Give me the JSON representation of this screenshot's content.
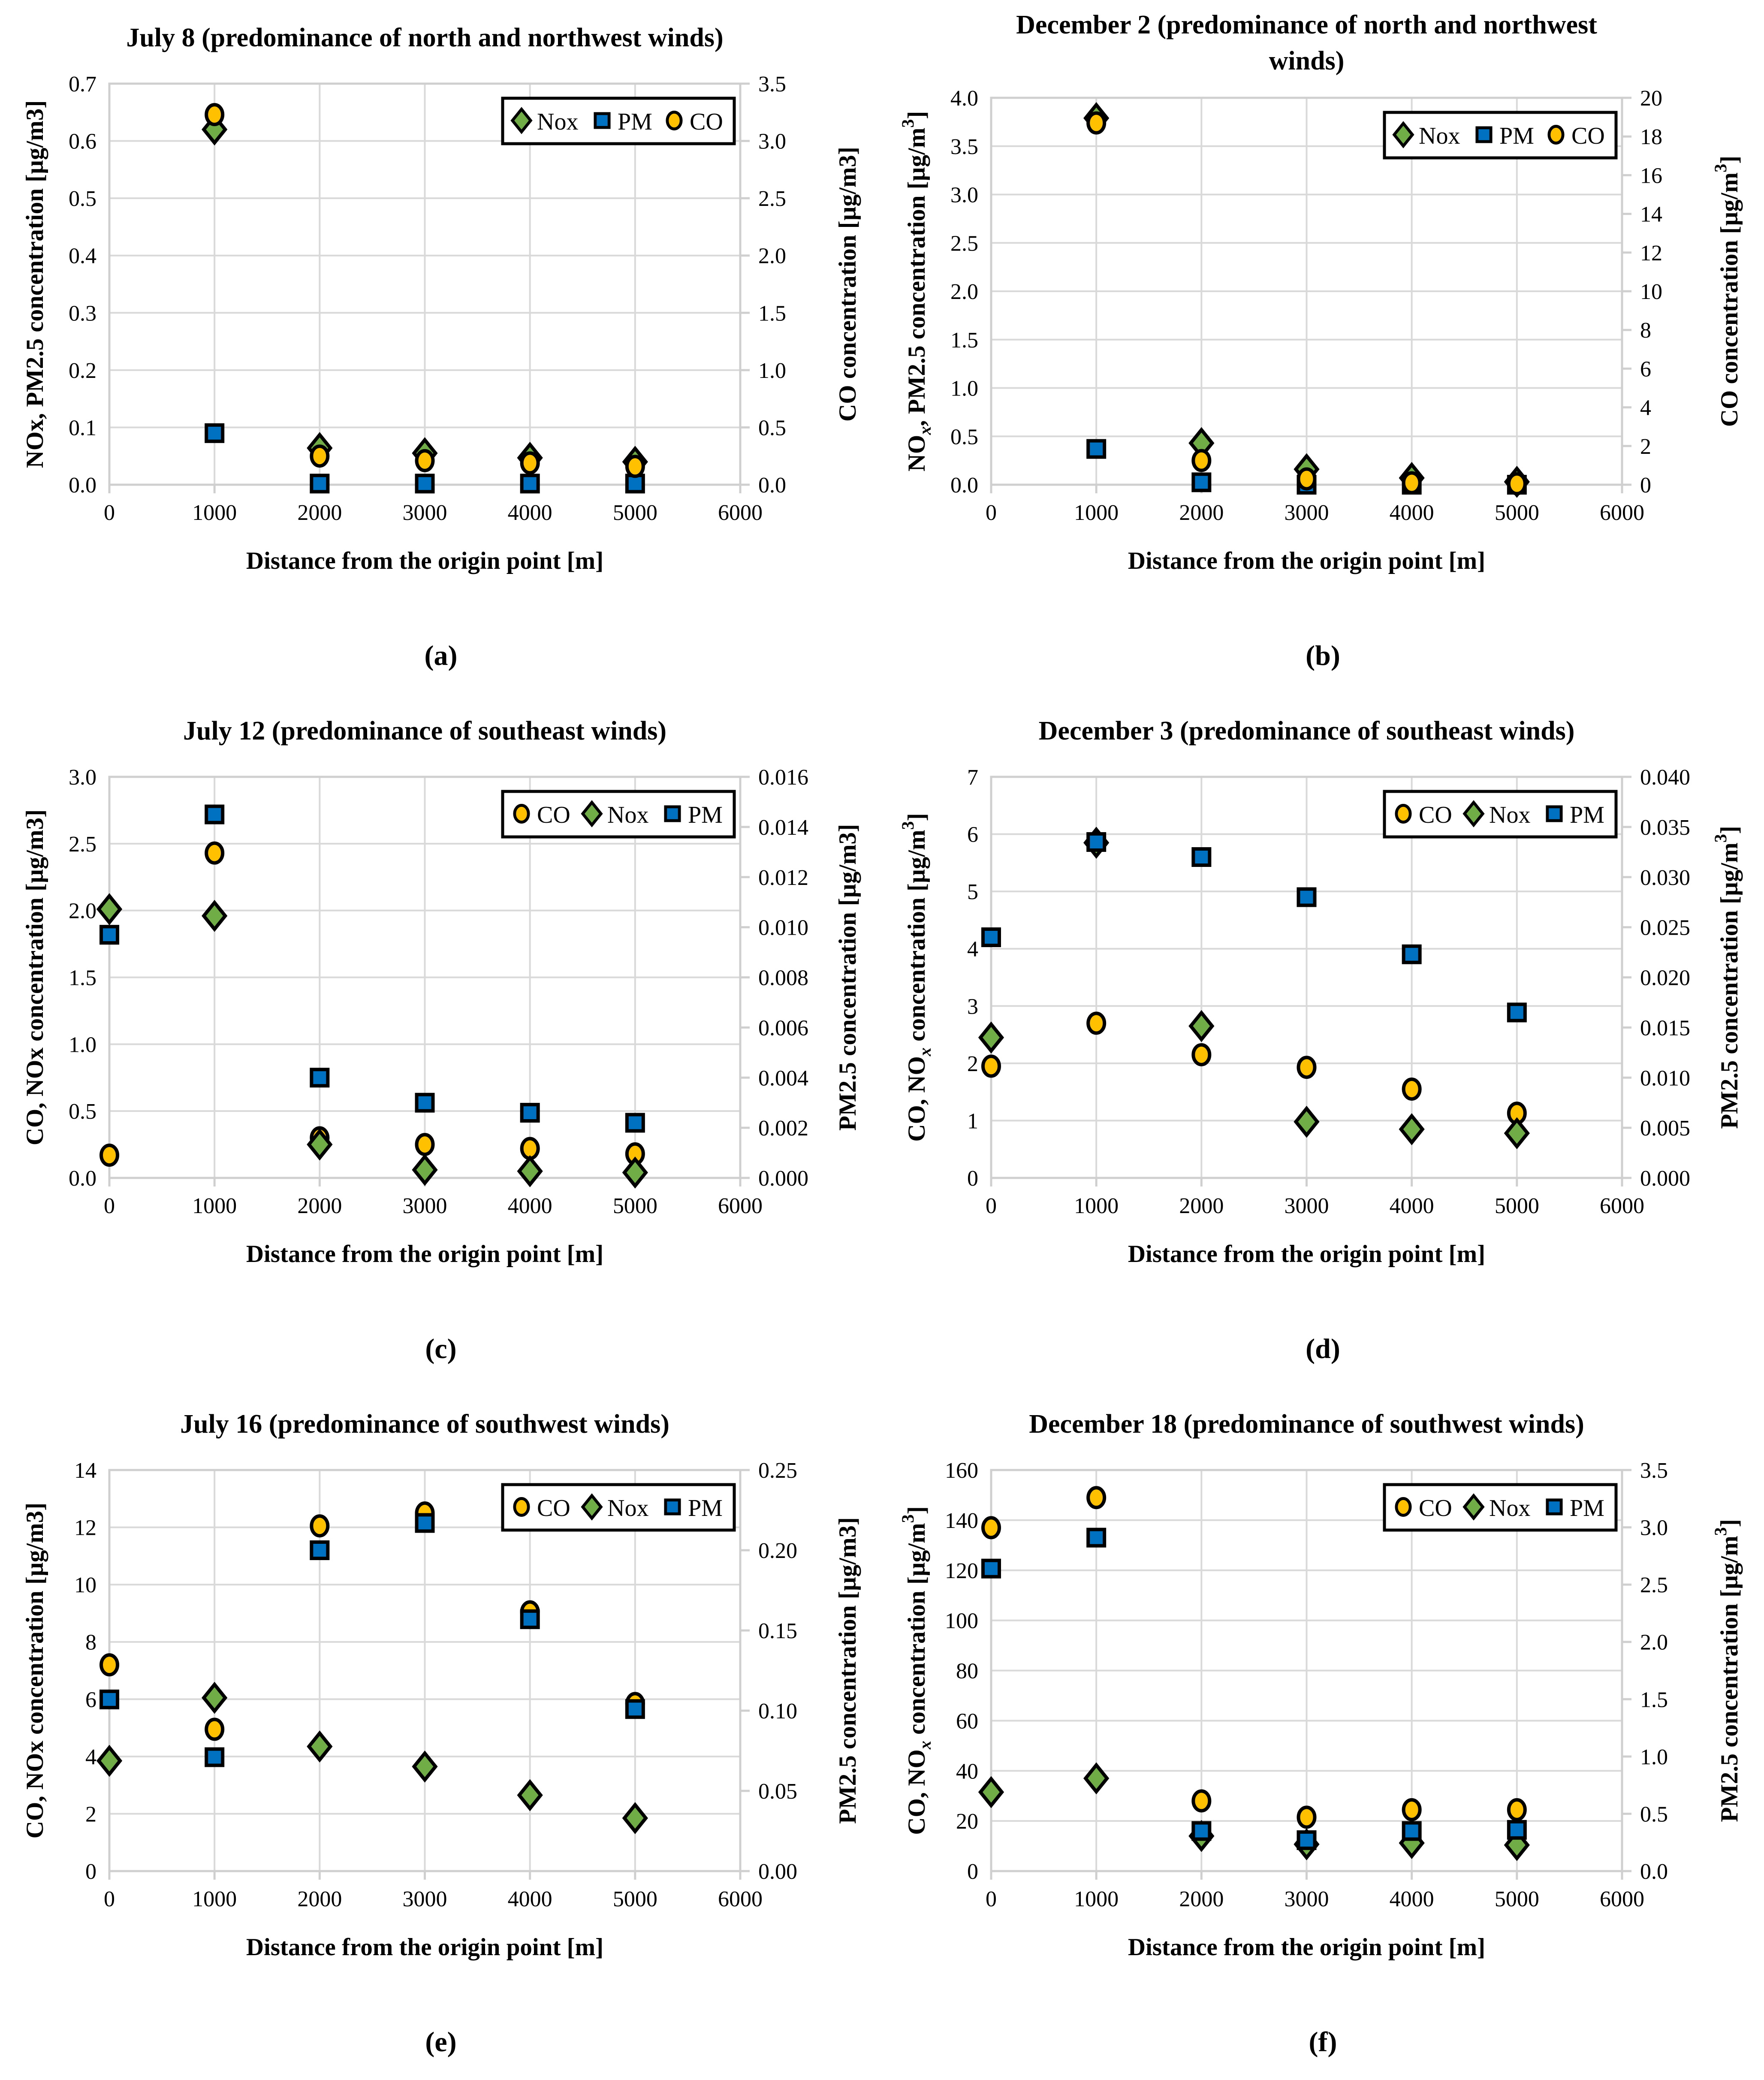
{
  "figure": {
    "background": "#FFFFFF",
    "marker_outline": "#000000",
    "grid_color": "#D9D9D9",
    "frame_color": "#CFCFCF",
    "series_colors": {
      "CO": "#FFC000",
      "Nox": "#70AD47",
      "PM": "#0070C0"
    }
  },
  "chart_data": [
    {
      "caption": "(a)",
      "type": "scatter",
      "title_lines": [
        "July 8 (predominance of north and northwest winds)"
      ],
      "x_axis": {
        "label": "Distance from the origin point [m]",
        "min": 0,
        "max": 6000,
        "step": 1000
      },
      "left_axis": {
        "label_parts": [
          {
            "t": "NOx, PM2.5 concentration [µg/m3]"
          }
        ],
        "min": 0,
        "max": 0.7,
        "step": 0.1,
        "decimals": 1
      },
      "right_axis": {
        "label_parts": [
          {
            "t": "CO concentration [µg/m3]"
          }
        ],
        "min": 0,
        "max": 3.5,
        "step": 0.5,
        "decimals": 1
      },
      "legend": [
        "Nox",
        "PM",
        "CO"
      ],
      "x": [
        1000,
        2000,
        3000,
        4000,
        5000
      ],
      "series": [
        {
          "name": "Nox",
          "marker": "diamond",
          "axis": "left",
          "y": [
            0.62,
            0.064,
            0.055,
            0.047,
            0.04
          ]
        },
        {
          "name": "PM",
          "marker": "square",
          "axis": "left",
          "y": [
            0.09,
            0.002,
            0.002,
            0.002,
            0.002
          ]
        },
        {
          "name": "CO",
          "marker": "circle",
          "axis": "right",
          "y": [
            3.23,
            0.25,
            0.21,
            0.19,
            0.16
          ]
        }
      ]
    },
    {
      "caption": "(b)",
      "type": "scatter",
      "title_lines": [
        "December 2 (predominance of north and northwest",
        "winds)"
      ],
      "x_axis": {
        "label": "Distance from the origin point [m]",
        "min": 0,
        "max": 6000,
        "step": 1000
      },
      "left_axis": {
        "label_parts": [
          {
            "t": "NO"
          },
          {
            "t": "x",
            "sub": true
          },
          {
            "t": ", PM2.5 concentration [µg/m"
          },
          {
            "t": "3",
            "sup": true
          },
          {
            "t": "]"
          }
        ],
        "min": 0,
        "max": 4.0,
        "step": 0.5,
        "decimals": 1
      },
      "right_axis": {
        "label_parts": [
          {
            "t": "CO concentration [µg/m"
          },
          {
            "t": "3",
            "sup": true
          },
          {
            "t": "]"
          }
        ],
        "min": 0,
        "max": 20,
        "step": 2,
        "decimals": 0
      },
      "legend": [
        "Nox",
        "PM",
        "CO"
      ],
      "x": [
        1000,
        2000,
        3000,
        4000,
        5000
      ],
      "series": [
        {
          "name": "Nox",
          "marker": "diamond",
          "axis": "left",
          "y": [
            3.79,
            0.43,
            0.16,
            0.07,
            0.03
          ]
        },
        {
          "name": "PM",
          "marker": "square",
          "axis": "left",
          "y": [
            0.37,
            0.025,
            0.0,
            0.0,
            0.0
          ]
        },
        {
          "name": "CO",
          "marker": "circle",
          "axis": "right",
          "y": [
            18.7,
            1.25,
            0.3,
            0.1,
            0.05
          ]
        }
      ]
    },
    {
      "caption": "(c)",
      "type": "scatter",
      "title_lines": [
        "July 12 (predominance of southeast winds)"
      ],
      "x_axis": {
        "label": "Distance from the origin point [m]",
        "min": 0,
        "max": 6000,
        "step": 1000
      },
      "left_axis": {
        "label_parts": [
          {
            "t": "CO, NOx  concentration  [µg/m3]"
          }
        ],
        "min": 0,
        "max": 3.0,
        "step": 0.5,
        "decimals": 1
      },
      "right_axis": {
        "label_parts": [
          {
            "t": "PM2.5 concentration [µg/m3]"
          }
        ],
        "min": 0,
        "max": 0.016,
        "step": 0.002,
        "decimals": 3
      },
      "legend": [
        "CO",
        "Nox",
        "PM"
      ],
      "x": [
        0,
        1000,
        2000,
        3000,
        4000,
        5000
      ],
      "series": [
        {
          "name": "CO",
          "marker": "circle",
          "axis": "left",
          "y": [
            0.17,
            2.43,
            0.3,
            0.25,
            0.22,
            0.18
          ]
        },
        {
          "name": "Nox",
          "marker": "diamond",
          "axis": "left",
          "y": [
            2.01,
            1.96,
            0.25,
            0.06,
            0.05,
            0.04
          ]
        },
        {
          "name": "PM",
          "marker": "square",
          "axis": "right",
          "y": [
            0.0097,
            0.0145,
            0.004,
            0.003,
            0.0026,
            0.0022
          ]
        }
      ]
    },
    {
      "caption": "(d)",
      "type": "scatter",
      "title_lines": [
        "December 3 (predominance of southeast winds)"
      ],
      "x_axis": {
        "label": "Distance from the origin point [m]",
        "min": 0,
        "max": 6000,
        "step": 1000
      },
      "left_axis": {
        "label_parts": [
          {
            "t": "CO, NO"
          },
          {
            "t": "x",
            "sub": true
          },
          {
            "t": "  concentration  [µg/m"
          },
          {
            "t": "3",
            "sup": true
          },
          {
            "t": "]"
          }
        ],
        "min": 0,
        "max": 7,
        "step": 1,
        "decimals": 0
      },
      "right_axis": {
        "label_parts": [
          {
            "t": "PM2.5 concentration [µg/m"
          },
          {
            "t": "3",
            "sup": true
          },
          {
            "t": "]"
          }
        ],
        "min": 0,
        "max": 0.04,
        "step": 0.005,
        "decimals": 3
      },
      "legend": [
        "CO",
        "Nox",
        "PM"
      ],
      "x": [
        0,
        1000,
        2000,
        3000,
        4000,
        5000
      ],
      "series": [
        {
          "name": "CO",
          "marker": "circle",
          "axis": "left",
          "y": [
            1.95,
            2.7,
            2.15,
            1.93,
            1.55,
            1.13
          ]
        },
        {
          "name": "Nox",
          "marker": "diamond",
          "axis": "left",
          "y": [
            2.45,
            5.85,
            2.65,
            0.98,
            0.85,
            0.78
          ]
        },
        {
          "name": "PM",
          "marker": "square",
          "axis": "right",
          "y": [
            0.024,
            0.0335,
            0.032,
            0.028,
            0.0223,
            0.0165
          ]
        }
      ]
    },
    {
      "caption": "(e)",
      "type": "scatter",
      "title_lines": [
        "July 16 (predominance of southwest winds)"
      ],
      "x_axis": {
        "label": "Distance from the origin point [m]",
        "min": 0,
        "max": 6000,
        "step": 1000
      },
      "left_axis": {
        "label_parts": [
          {
            "t": "CO, NOx concentration [µg/m3]"
          }
        ],
        "min": 0,
        "max": 14,
        "step": 2,
        "decimals": 0
      },
      "right_axis": {
        "label_parts": [
          {
            "t": "PM2.5 concentration [µg/m3]"
          }
        ],
        "min": 0,
        "max": 0.25,
        "step": 0.05,
        "decimals": 2
      },
      "legend": [
        "CO",
        "Nox",
        "PM"
      ],
      "x": [
        0,
        1000,
        2000,
        3000,
        4000,
        5000
      ],
      "series": [
        {
          "name": "CO",
          "marker": "circle",
          "axis": "left",
          "y": [
            7.2,
            4.95,
            12.05,
            12.5,
            9.05,
            5.85
          ]
        },
        {
          "name": "Nox",
          "marker": "diamond",
          "axis": "left",
          "y": [
            3.85,
            6.05,
            4.35,
            3.65,
            2.65,
            1.85
          ]
        },
        {
          "name": "PM",
          "marker": "square",
          "axis": "right",
          "y": [
            0.107,
            0.071,
            0.2,
            0.217,
            0.157,
            0.101
          ]
        }
      ]
    },
    {
      "caption": "(f)",
      "type": "scatter",
      "title_lines": [
        "December 18 (predominance of southwest winds)"
      ],
      "x_axis": {
        "label": "Distance from the origin point [m]",
        "min": 0,
        "max": 6000,
        "step": 1000
      },
      "left_axis": {
        "label_parts": [
          {
            "t": "CO, NO"
          },
          {
            "t": "x",
            "sub": true
          },
          {
            "t": " concentration  [µg/m"
          },
          {
            "t": "3",
            "sup": true
          },
          {
            "t": "]"
          }
        ],
        "min": 0,
        "max": 160,
        "step": 20,
        "decimals": 0
      },
      "right_axis": {
        "label_parts": [
          {
            "t": "PM2.5 concentration [µg/m"
          },
          {
            "t": "3",
            "sup": true
          },
          {
            "t": "]"
          }
        ],
        "min": 0,
        "max": 3.5,
        "step": 0.5,
        "decimals": 1
      },
      "legend": [
        "CO",
        "Nox",
        "PM"
      ],
      "x": [
        0,
        1000,
        2000,
        3000,
        4000,
        5000
      ],
      "series": [
        {
          "name": "CO",
          "marker": "circle",
          "axis": "left",
          "y": [
            137,
            149,
            28,
            21.5,
            24.5,
            24.5
          ]
        },
        {
          "name": "Nox",
          "marker": "diamond",
          "axis": "left",
          "y": [
            31.5,
            37,
            14,
            10.7,
            11.2,
            10.4
          ]
        },
        {
          "name": "PM",
          "marker": "square",
          "axis": "right",
          "y": [
            2.64,
            2.91,
            0.35,
            0.27,
            0.35,
            0.36
          ]
        }
      ]
    }
  ]
}
